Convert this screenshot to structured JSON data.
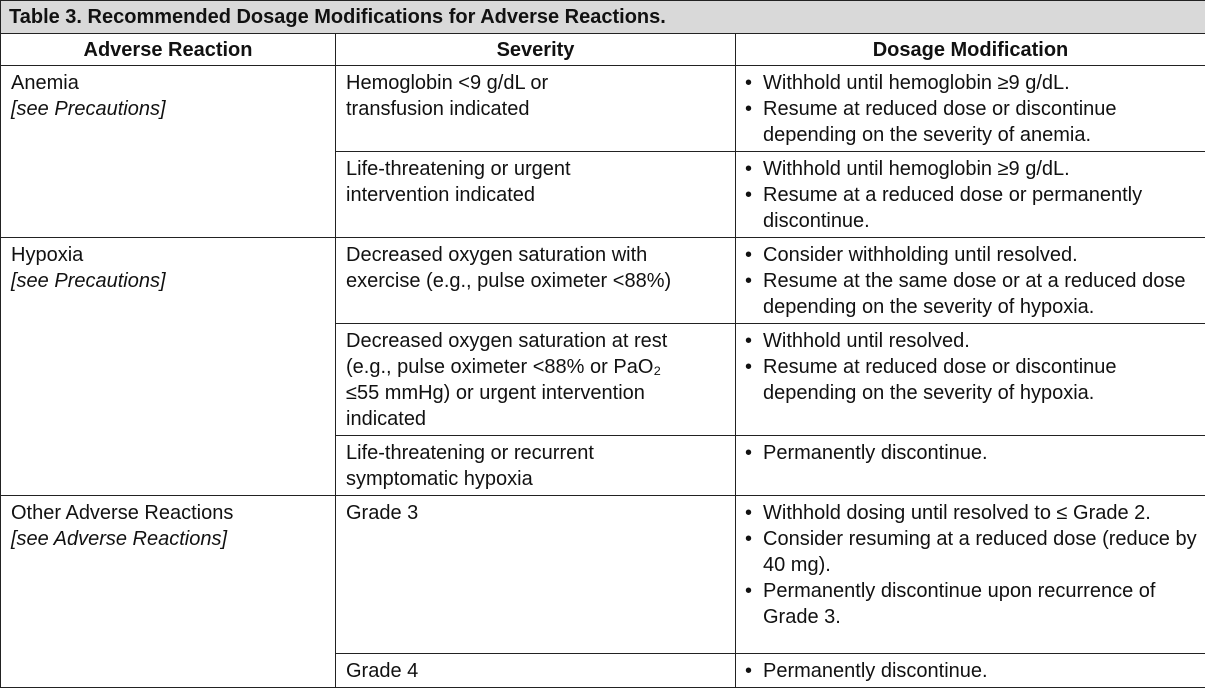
{
  "table": {
    "title": "Table 3. Recommended Dosage Modifications for Adverse Reactions.",
    "headers": [
      "Adverse Reaction",
      "Severity",
      "Dosage Modification"
    ],
    "groups": [
      {
        "reaction": "Anemia",
        "reference": "[see Precautions]",
        "rows": [
          {
            "severity": [
              "Hemoglobin <9 g/dL or",
              "transfusion indicated"
            ],
            "modifications": [
              "Withhold until hemoglobin ≥9 g/dL.",
              "Resume at reduced dose or discontinue depending on the severity of anemia."
            ]
          },
          {
            "severity": [
              "Life-threatening or urgent",
              "intervention indicated"
            ],
            "modifications": [
              "Withhold until hemoglobin ≥9 g/dL.",
              "Resume at a reduced dose or permanently discontinue."
            ]
          }
        ]
      },
      {
        "reaction": "Hypoxia",
        "reference": "[see Precautions]",
        "rows": [
          {
            "severity": [
              "Decreased oxygen saturation with",
              "exercise (e.g., pulse oximeter <88%)"
            ],
            "modifications": [
              "Consider withholding until resolved.",
              "Resume at the same dose or at a reduced dose depending on the severity of hypoxia."
            ]
          },
          {
            "severity": [
              "Decreased oxygen saturation at rest",
              "(e.g., pulse oximeter <88% or PaO₂",
              "≤55 mmHg) or urgent intervention",
              "indicated"
            ],
            "modifications": [
              "Withhold until resolved.",
              "Resume at reduced dose or discontinue depending on the severity of hypoxia."
            ]
          },
          {
            "severity": [
              "Life-threatening or recurrent",
              "symptomatic hypoxia"
            ],
            "modifications": [
              "Permanently discontinue."
            ]
          }
        ]
      },
      {
        "reaction": "Other Adverse Reactions",
        "reference": "[see Adverse Reactions]",
        "rows": [
          {
            "severity": [
              "Grade 3"
            ],
            "modifications": [
              "Withhold dosing until resolved to ≤ Grade 2.",
              "Consider resuming at a reduced dose (reduce by 40 mg).",
              "Permanently discontinue upon recurrence of Grade 3."
            ]
          },
          {
            "severity": [
              "Grade 4"
            ],
            "modifications": [
              "Permanently discontinue."
            ]
          }
        ]
      }
    ]
  }
}
